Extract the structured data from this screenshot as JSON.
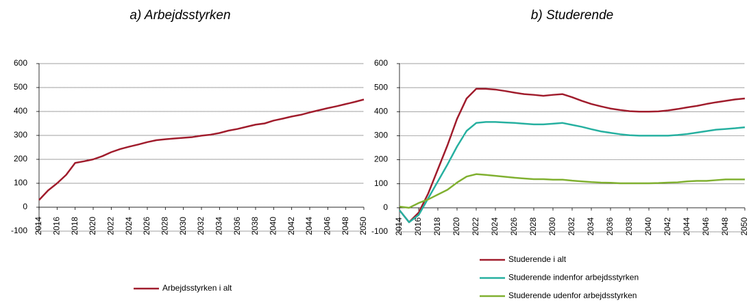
{
  "chart_data": [
    {
      "type": "line",
      "title": "a) Arbejdsstyrken",
      "x": [
        2014,
        2015,
        2016,
        2017,
        2018,
        2019,
        2020,
        2021,
        2022,
        2023,
        2024,
        2025,
        2026,
        2027,
        2028,
        2029,
        2030,
        2031,
        2032,
        2033,
        2034,
        2035,
        2036,
        2037,
        2038,
        2039,
        2040,
        2041,
        2042,
        2043,
        2044,
        2045,
        2046,
        2047,
        2048,
        2049,
        2050
      ],
      "series": [
        {
          "name": "Arbejdsstyrken i alt",
          "color": "#a01c2c",
          "values": [
            30,
            70,
            100,
            135,
            185,
            192,
            200,
            213,
            230,
            243,
            253,
            262,
            272,
            280,
            284,
            287,
            290,
            293,
            299,
            303,
            310,
            320,
            327,
            336,
            345,
            350,
            362,
            370,
            379,
            386,
            396,
            405,
            414,
            422,
            431,
            440,
            450
          ]
        }
      ],
      "xlim": [
        2014,
        2050
      ],
      "xticks": [
        2014,
        2016,
        2018,
        2020,
        2022,
        2024,
        2026,
        2028,
        2030,
        2032,
        2034,
        2036,
        2038,
        2040,
        2042,
        2044,
        2046,
        2048,
        2050
      ],
      "ylim": [
        -100,
        600
      ],
      "yticks": [
        -100,
        0,
        100,
        200,
        300,
        400,
        500,
        600
      ],
      "grid": true
    },
    {
      "type": "line",
      "title": "b) Studerende",
      "x": [
        2014,
        2015,
        2016,
        2017,
        2018,
        2019,
        2020,
        2021,
        2022,
        2023,
        2024,
        2025,
        2026,
        2027,
        2028,
        2029,
        2030,
        2031,
        2032,
        2033,
        2034,
        2035,
        2036,
        2037,
        2038,
        2039,
        2040,
        2041,
        2042,
        2043,
        2044,
        2045,
        2046,
        2047,
        2048,
        2049,
        2050
      ],
      "series": [
        {
          "name": "Studerende i alt",
          "color": "#a01c2c",
          "values": [
            -10,
            -60,
            -20,
            60,
            160,
            260,
            370,
            455,
            495,
            495,
            492,
            486,
            479,
            473,
            470,
            466,
            470,
            473,
            460,
            445,
            432,
            422,
            413,
            407,
            402,
            400,
            400,
            401,
            405,
            411,
            418,
            424,
            432,
            439,
            445,
            451,
            455
          ]
        },
        {
          "name": "Studerende indenfor arbejdsstyrken",
          "color": "#26b0a0",
          "values": [
            -10,
            -60,
            -30,
            40,
            110,
            180,
            255,
            320,
            353,
            357,
            357,
            355,
            353,
            350,
            347,
            347,
            350,
            353,
            345,
            337,
            327,
            318,
            312,
            306,
            302,
            300,
            300,
            300,
            300,
            303,
            307,
            313,
            319,
            325,
            328,
            331,
            335
          ]
        },
        {
          "name": "Studerende udenfor arbejdsstyrken",
          "color": "#80b030",
          "values": [
            5,
            0,
            20,
            35,
            55,
            75,
            105,
            130,
            140,
            137,
            133,
            129,
            125,
            122,
            119,
            119,
            117,
            117,
            113,
            110,
            107,
            105,
            104,
            102,
            102,
            102,
            102,
            103,
            105,
            106,
            110,
            112,
            112,
            115,
            118,
            118,
            118
          ]
        }
      ],
      "xlim": [
        2014,
        2050
      ],
      "xticks": [
        2014,
        2016,
        2018,
        2020,
        2022,
        2024,
        2026,
        2028,
        2030,
        2032,
        2034,
        2036,
        2038,
        2040,
        2042,
        2044,
        2046,
        2048,
        2050
      ],
      "ylim": [
        -100,
        600
      ],
      "yticks": [
        -100,
        0,
        100,
        200,
        300,
        400,
        500,
        600
      ],
      "grid": true
    }
  ]
}
